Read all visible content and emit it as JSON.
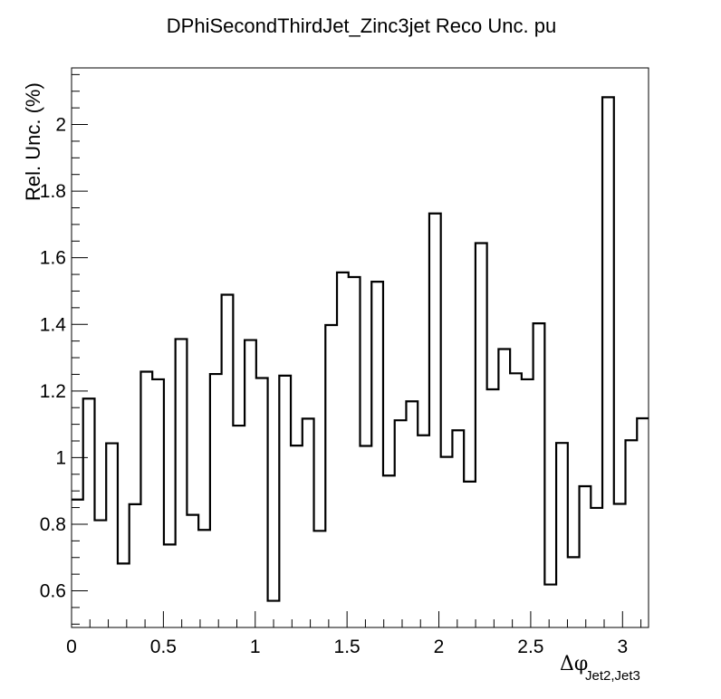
{
  "chart_data": {
    "type": "line",
    "title": "DPhiSecondThirdJet_Zinc3jet Reco Unc. pu",
    "xlabel": {
      "symbol": "Δφ",
      "subscript": "Jet2,Jet3"
    },
    "ylabel": "Rel. Unc. (%)",
    "xlim": [
      0,
      3.1416
    ],
    "ylim": [
      0.49,
      2.17
    ],
    "x_ticks": [
      {
        "value": 0,
        "label": "0"
      },
      {
        "value": 0.5,
        "label": "0.5"
      },
      {
        "value": 1,
        "label": "1"
      },
      {
        "value": 1.5,
        "label": "1.5"
      },
      {
        "value": 2,
        "label": "2"
      },
      {
        "value": 2.5,
        "label": "2.5"
      },
      {
        "value": 3,
        "label": "3"
      }
    ],
    "y_ticks": [
      {
        "value": 0.6,
        "label": "0.6"
      },
      {
        "value": 0.8,
        "label": "0.8"
      },
      {
        "value": 1.0,
        "label": "1"
      },
      {
        "value": 1.2,
        "label": "1.2"
      },
      {
        "value": 1.4,
        "label": "1.4"
      },
      {
        "value": 1.6,
        "label": "1.6"
      },
      {
        "value": 1.8,
        "label": "1.8"
      },
      {
        "value": 2.0,
        "label": "2"
      }
    ],
    "grid": false,
    "series": [
      {
        "style": "step-histogram",
        "bins": 50,
        "values": [
          0.874,
          1.177,
          0.812,
          1.043,
          0.682,
          0.86,
          1.258,
          1.235,
          0.739,
          1.356,
          0.828,
          0.783,
          1.251,
          1.489,
          1.096,
          1.353,
          1.239,
          0.57,
          1.246,
          1.036,
          1.117,
          0.78,
          1.398,
          1.556,
          1.542,
          1.035,
          1.528,
          0.946,
          1.112,
          1.169,
          1.067,
          1.733,
          1.002,
          1.082,
          0.928,
          1.644,
          1.205,
          1.326,
          1.253,
          1.235,
          1.403,
          0.619,
          1.044,
          0.701,
          0.914,
          0.849,
          2.082,
          0.861,
          1.052,
          1.118
        ]
      }
    ]
  }
}
